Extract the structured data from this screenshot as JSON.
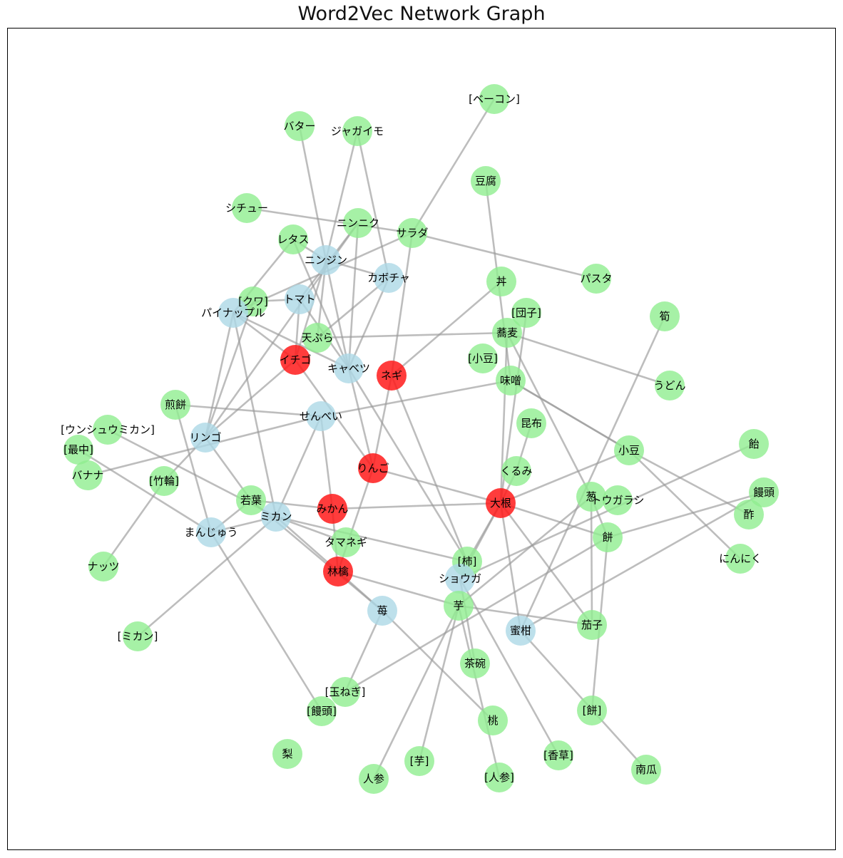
{
  "title": "Word2Vec Network Graph",
  "colors": {
    "red": "#ff1a1a",
    "blue": "#add8e6",
    "green": "#90ee90",
    "edge": "#999999"
  },
  "nodes": [
    {
      "id": "ベーコン",
      "label": "[ベーコン]",
      "group": "green"
    },
    {
      "id": "バター",
      "label": "バター",
      "group": "green"
    },
    {
      "id": "ジャガイモ",
      "label": "ジャガイモ",
      "group": "green"
    },
    {
      "id": "豆腐",
      "label": "豆腐",
      "group": "green"
    },
    {
      "id": "シチュー",
      "label": "シチュー",
      "group": "green"
    },
    {
      "id": "ニンニク",
      "label": "ニンニク",
      "group": "green"
    },
    {
      "id": "サラダ",
      "label": "サラダ",
      "group": "green"
    },
    {
      "id": "レタス",
      "label": "レタス",
      "group": "green"
    },
    {
      "id": "ニンジン",
      "label": "ニンジン",
      "group": "blue"
    },
    {
      "id": "カボチャ",
      "label": "カボチャ",
      "group": "blue"
    },
    {
      "id": "パスタ",
      "label": "パスタ",
      "group": "green"
    },
    {
      "id": "丼",
      "label": "丼",
      "group": "green"
    },
    {
      "id": "クワ",
      "label": "[クワ]",
      "group": "green"
    },
    {
      "id": "トマト",
      "label": "トマト",
      "group": "blue"
    },
    {
      "id": "パイナップル",
      "label": "パイナップル",
      "group": "blue"
    },
    {
      "id": "団子",
      "label": "[団子]",
      "group": "green"
    },
    {
      "id": "筍",
      "label": "筍",
      "group": "green"
    },
    {
      "id": "天ぷら",
      "label": "天ぷら",
      "group": "green"
    },
    {
      "id": "蕎麦",
      "label": "蕎麦",
      "group": "green"
    },
    {
      "id": "イチゴ",
      "label": "イチゴ",
      "group": "red"
    },
    {
      "id": "キャベツ",
      "label": "キャベツ",
      "group": "blue"
    },
    {
      "id": "ネギ",
      "label": "ネギ",
      "group": "red"
    },
    {
      "id": "小豆b",
      "label": "[小豆]",
      "group": "green"
    },
    {
      "id": "味噌",
      "label": "味噌",
      "group": "green"
    },
    {
      "id": "うどん",
      "label": "うどん",
      "group": "green"
    },
    {
      "id": "煎餅",
      "label": "煎餅",
      "group": "green"
    },
    {
      "id": "せんべい",
      "label": "せんべい",
      "group": "blue"
    },
    {
      "id": "ウンシュウミカン",
      "label": "[ウンシュウミカン]",
      "group": "green"
    },
    {
      "id": "リンゴ",
      "label": "リンゴ",
      "group": "blue"
    },
    {
      "id": "昆布",
      "label": "昆布",
      "group": "green"
    },
    {
      "id": "最中",
      "label": "[最中]",
      "group": "green"
    },
    {
      "id": "小豆",
      "label": "小豆",
      "group": "green"
    },
    {
      "id": "飴",
      "label": "飴",
      "group": "green"
    },
    {
      "id": "バナナ",
      "label": "バナナ",
      "group": "green"
    },
    {
      "id": "りんご",
      "label": "りんご",
      "group": "red"
    },
    {
      "id": "くるみ",
      "label": "くるみ",
      "group": "green"
    },
    {
      "id": "竹輪",
      "label": "[竹輪]",
      "group": "green"
    },
    {
      "id": "饅頭",
      "label": "饅頭",
      "group": "green"
    },
    {
      "id": "葱",
      "label": "葱",
      "group": "green"
    },
    {
      "id": "トウガラシ",
      "label": "トウガラシ",
      "group": "green"
    },
    {
      "id": "若葉",
      "label": "若葉",
      "group": "green"
    },
    {
      "id": "大根",
      "label": "大根",
      "group": "red"
    },
    {
      "id": "酢",
      "label": "酢",
      "group": "green"
    },
    {
      "id": "みかん",
      "label": "みかん",
      "group": "red"
    },
    {
      "id": "ミカン",
      "label": "ミカン",
      "group": "blue"
    },
    {
      "id": "まんじゅう",
      "label": "まんじゅう",
      "group": "blue"
    },
    {
      "id": "餅",
      "label": "餅",
      "group": "green"
    },
    {
      "id": "タマネギ",
      "label": "タマネギ",
      "group": "green"
    },
    {
      "id": "にんにく",
      "label": "にんにく",
      "group": "green"
    },
    {
      "id": "ナッツ",
      "label": "ナッツ",
      "group": "green"
    },
    {
      "id": "柿",
      "label": "[柿]",
      "group": "green"
    },
    {
      "id": "林檎",
      "label": "林檎",
      "group": "red"
    },
    {
      "id": "ショウガ",
      "label": "ショウガ",
      "group": "blue"
    },
    {
      "id": "苺",
      "label": "苺",
      "group": "blue"
    },
    {
      "id": "芋",
      "label": "芋",
      "group": "green"
    },
    {
      "id": "茄子",
      "label": "茄子",
      "group": "green"
    },
    {
      "id": "蜜柑",
      "label": "蜜柑",
      "group": "blue"
    },
    {
      "id": "ミカンb",
      "label": "[ミカン]",
      "group": "green"
    },
    {
      "id": "茶碗",
      "label": "茶碗",
      "group": "green"
    },
    {
      "id": "玉ねぎ",
      "label": "[玉ねぎ]",
      "group": "green"
    },
    {
      "id": "饅頭b",
      "label": "[饅頭]",
      "group": "green"
    },
    {
      "id": "餅b",
      "label": "[餅]",
      "group": "green"
    },
    {
      "id": "桃",
      "label": "桃",
      "group": "green"
    },
    {
      "id": "梨",
      "label": "梨",
      "group": "green"
    },
    {
      "id": "芋b",
      "label": "[芋]",
      "group": "green"
    },
    {
      "id": "香草",
      "label": "[香草]",
      "group": "green"
    },
    {
      "id": "南瓜",
      "label": "南瓜",
      "group": "green"
    },
    {
      "id": "人参",
      "label": "人参",
      "group": "green"
    },
    {
      "id": "人参b",
      "label": "[人参]",
      "group": "green"
    }
  ],
  "edges": [
    [
      "ベーコン",
      "サラダ"
    ],
    [
      "サラダ",
      "ネギ"
    ],
    [
      "サラダ",
      "パスタ"
    ],
    [
      "サラダ",
      "パイナップル"
    ],
    [
      "シチュー",
      "サラダ"
    ],
    [
      "バター",
      "ニンジン"
    ],
    [
      "ジャガイモ",
      "ニンジン"
    ],
    [
      "ジャガイモ",
      "カボチャ"
    ],
    [
      "ニンニク",
      "リンゴ"
    ],
    [
      "ニンニク",
      "トマト"
    ],
    [
      "ニンニク",
      "キャベツ"
    ],
    [
      "レタス",
      "ニンジン"
    ],
    [
      "レタス",
      "キャベツ"
    ],
    [
      "レタス",
      "パイナップル"
    ],
    [
      "ニンジン",
      "カボチャ"
    ],
    [
      "ニンジン",
      "イチゴ"
    ],
    [
      "ニンジン",
      "キャベツ"
    ],
    [
      "ニンジン",
      "天ぷら"
    ],
    [
      "カボチャ",
      "キャベツ"
    ],
    [
      "カボチャ",
      "天ぷら"
    ],
    [
      "クワ",
      "トマト"
    ],
    [
      "クワ",
      "リンゴ"
    ],
    [
      "トマト",
      "イチゴ"
    ],
    [
      "トマト",
      "キャベツ"
    ],
    [
      "パイナップル",
      "リンゴ"
    ],
    [
      "パイナップル",
      "イチゴ"
    ],
    [
      "パイナップル",
      "キャベツ"
    ],
    [
      "パイナップル",
      "ミカン"
    ],
    [
      "天ぷら",
      "蕎麦"
    ],
    [
      "蕎麦",
      "うどん"
    ],
    [
      "蕎麦",
      "葱"
    ],
    [
      "蕎麦",
      "大根"
    ],
    [
      "団子",
      "大根"
    ],
    [
      "丼",
      "ネギ"
    ],
    [
      "豆腐",
      "味噌"
    ],
    [
      "味噌",
      "小豆"
    ],
    [
      "味噌",
      "せんべい"
    ],
    [
      "煎餅",
      "せんべい"
    ],
    [
      "煎餅",
      "まんじゅう"
    ],
    [
      "せんべい",
      "バナナ"
    ],
    [
      "せんべい",
      "ミカン"
    ],
    [
      "せんべい",
      "みかん"
    ],
    [
      "イチゴ",
      "リンゴ"
    ],
    [
      "イチゴ",
      "りんご"
    ],
    [
      "キャベツ",
      "柿"
    ],
    [
      "キャベツ",
      "りんご"
    ],
    [
      "ネギ",
      "りんご"
    ],
    [
      "ネギ",
      "柿"
    ],
    [
      "ウンシュウミカン",
      "ミカン"
    ],
    [
      "最中",
      "まんじゅう"
    ],
    [
      "リンゴ",
      "若葉"
    ],
    [
      "リンゴ",
      "竹輪"
    ],
    [
      "小豆",
      "酢"
    ],
    [
      "小豆",
      "大根"
    ],
    [
      "小豆",
      "にんにく"
    ],
    [
      "小豆",
      "味噌"
    ],
    [
      "筍",
      "蜜柑"
    ],
    [
      "飴",
      "ショウガ"
    ],
    [
      "饅頭",
      "餅"
    ],
    [
      "饅頭",
      "蜜柑"
    ],
    [
      "りんご",
      "大根"
    ],
    [
      "りんご",
      "林檎"
    ],
    [
      "くるみ",
      "昆布"
    ],
    [
      "くるみ",
      "大根"
    ],
    [
      "竹輪",
      "ナッツ"
    ],
    [
      "若葉",
      "みかん"
    ],
    [
      "若葉",
      "まんじゅう"
    ],
    [
      "若葉",
      "苺"
    ],
    [
      "大根",
      "みかん"
    ],
    [
      "大根",
      "餅"
    ],
    [
      "大根",
      "茄子"
    ],
    [
      "大根",
      "蜜柑"
    ],
    [
      "大根",
      "ショウガ"
    ],
    [
      "大根",
      "柿"
    ],
    [
      "葱",
      "茄子"
    ],
    [
      "葱",
      "芋"
    ],
    [
      "葱",
      "餅"
    ],
    [
      "みかん",
      "林檎"
    ],
    [
      "ミカン",
      "タマネギ"
    ],
    [
      "ミカン",
      "林檎"
    ],
    [
      "ミカン",
      "柿"
    ],
    [
      "ミカン",
      "ミカンb"
    ],
    [
      "まんじゅう",
      "饅頭b"
    ],
    [
      "まんじゅう",
      "ミカン"
    ],
    [
      "餅",
      "玉ねぎ"
    ],
    [
      "餅",
      "餅b"
    ],
    [
      "林檎",
      "芋"
    ],
    [
      "林檎",
      "苺"
    ],
    [
      "ショウガ",
      "茶碗"
    ],
    [
      "ショウガ",
      "香草"
    ],
    [
      "苺",
      "玉ねぎ"
    ],
    [
      "苺",
      "桃"
    ],
    [
      "芋",
      "茄子"
    ],
    [
      "芋",
      "人参"
    ],
    [
      "芋",
      "芋b"
    ],
    [
      "芋",
      "人参b"
    ],
    [
      "蜜柑",
      "南瓜"
    ]
  ]
}
